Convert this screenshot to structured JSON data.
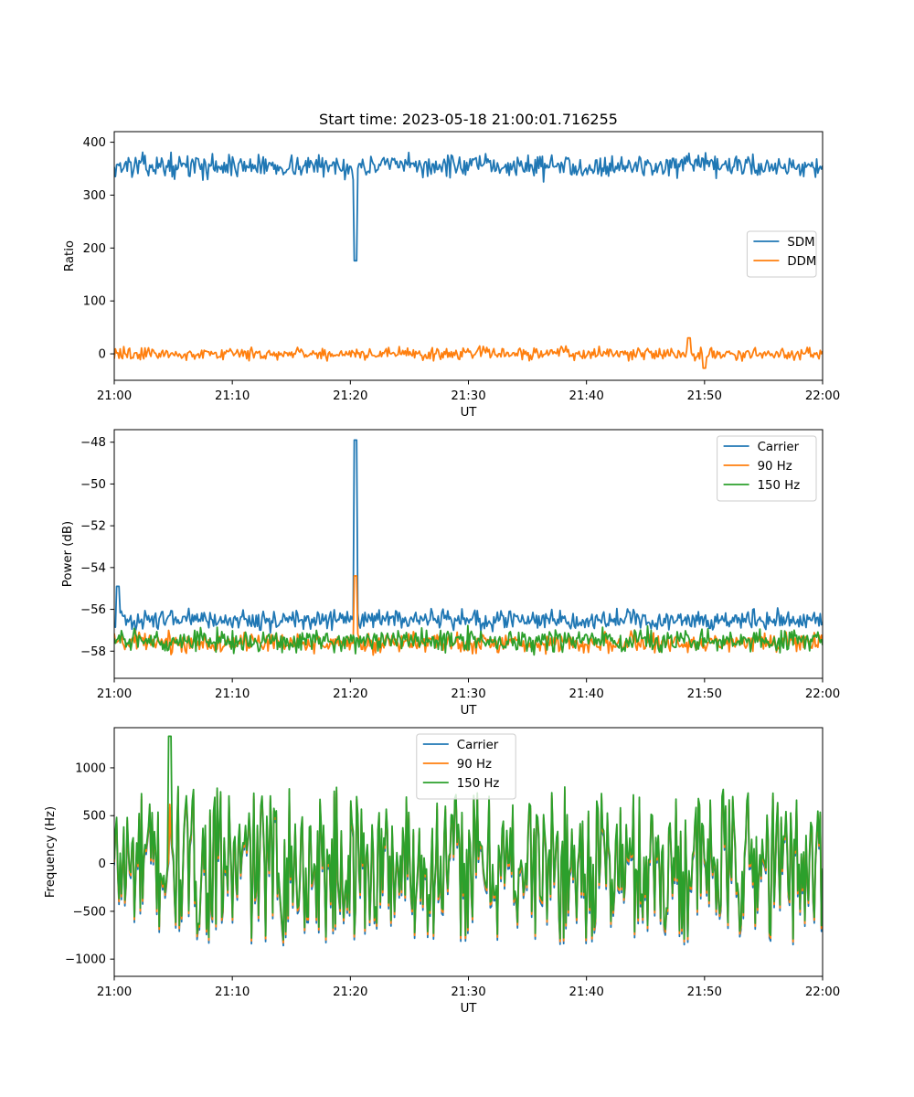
{
  "chart_data": [
    {
      "type": "line",
      "title": "Start time: 2023-05-18 21:00:01.716255",
      "xlabel": "UT",
      "ylabel": "Ratio",
      "x_tick_labels": [
        "21:00",
        "21:10",
        "21:20",
        "21:30",
        "21:40",
        "21:50",
        "22:00"
      ],
      "xlim_minutes": [
        0,
        60
      ],
      "ylim": [
        -50,
        420
      ],
      "y_ticks": [
        0,
        100,
        200,
        300,
        400
      ],
      "legend_position": "center-right",
      "series": [
        {
          "name": "SDM",
          "color": "#1f77b4",
          "values_summary": {
            "mean": 355,
            "amplitude": 18
          },
          "features": [
            {
              "x_minute": 20.4,
              "y": 176
            }
          ]
        },
        {
          "name": "DDM",
          "color": "#ff7f0e",
          "values_summary": {
            "mean": 0,
            "amplitude": 10
          },
          "features": [
            {
              "x_minute": 48.7,
              "y": 30
            },
            {
              "x_minute": 50.0,
              "y": -27
            }
          ]
        }
      ]
    },
    {
      "type": "line",
      "title": "",
      "xlabel": "UT",
      "ylabel": "Power (dB)",
      "x_tick_labels": [
        "21:00",
        "21:10",
        "21:20",
        "21:30",
        "21:40",
        "21:50",
        "22:00"
      ],
      "xlim_minutes": [
        0,
        60
      ],
      "ylim": [
        -59.3,
        -47.4
      ],
      "y_ticks": [
        -58,
        -56,
        -54,
        -52,
        -50,
        -48
      ],
      "legend_position": "upper-right",
      "series": [
        {
          "name": "Carrier",
          "color": "#1f77b4",
          "values_summary": {
            "mean": -56.5,
            "amplitude": 0.4
          },
          "features": [
            {
              "x_minute": 20.4,
              "y": -47.9
            },
            {
              "x_minute": 0.3,
              "y": -54.9
            }
          ]
        },
        {
          "name": "90 Hz",
          "color": "#ff7f0e",
          "values_summary": {
            "mean": -57.6,
            "amplitude": 0.4
          },
          "features": [
            {
              "x_minute": 20.4,
              "y": -54.4
            }
          ]
        },
        {
          "name": "150 Hz",
          "color": "#2ca02c",
          "values_summary": {
            "mean": -57.5,
            "amplitude": 0.45
          },
          "features": []
        }
      ]
    },
    {
      "type": "line",
      "title": "",
      "xlabel": "UT",
      "ylabel": "Frequency (Hz)",
      "x_tick_labels": [
        "21:00",
        "21:10",
        "21:20",
        "21:30",
        "21:40",
        "21:50",
        "22:00"
      ],
      "xlim_minutes": [
        0,
        60
      ],
      "ylim": [
        -1180,
        1420
      ],
      "y_ticks": [
        -1000,
        -500,
        0,
        500,
        1000
      ],
      "legend_position": "upper-center",
      "series": [
        {
          "name": "Carrier",
          "color": "#1f77b4",
          "offset": -60,
          "values_summary": {
            "mean": 0,
            "amplitude": 700
          }
        },
        {
          "name": "90 Hz",
          "color": "#ff7f0e",
          "offset": -30,
          "values_summary": {
            "mean": 0,
            "amplitude": 700
          }
        },
        {
          "name": "150 Hz",
          "color": "#2ca02c",
          "offset": 0,
          "values_summary": {
            "mean": 0,
            "amplitude": 700
          },
          "features": [
            {
              "x_minute": 4.7,
              "y": 1330
            }
          ]
        }
      ]
    }
  ]
}
